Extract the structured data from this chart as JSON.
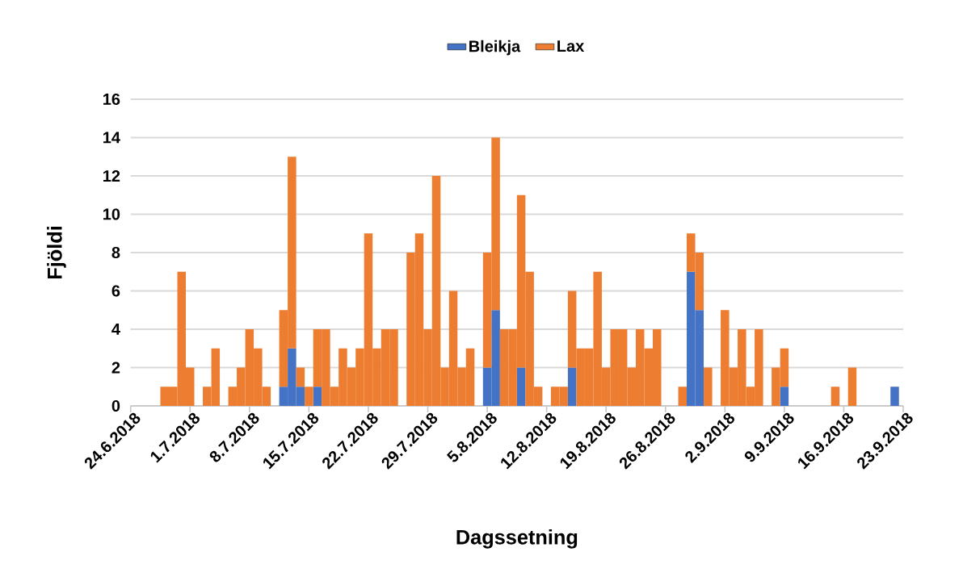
{
  "chart_data": {
    "type": "bar",
    "stacked": true,
    "xlabel": "Dagssetning",
    "ylabel": "Fjöldi",
    "legend": "top",
    "grid": "y",
    "xlim": [
      "2018-06-24",
      "2018-09-23"
    ],
    "xticks": [
      {
        "value": "2018-06-24",
        "label": "24.6.2018"
      },
      {
        "value": "2018-07-01",
        "label": "1.7.2018"
      },
      {
        "value": "2018-07-08",
        "label": "8.7.2018"
      },
      {
        "value": "2018-07-15",
        "label": "15.7.2018"
      },
      {
        "value": "2018-07-22",
        "label": "22.7.2018"
      },
      {
        "value": "2018-07-29",
        "label": "29.7.2018"
      },
      {
        "value": "2018-08-05",
        "label": "5.8.2018"
      },
      {
        "value": "2018-08-12",
        "label": "12.8.2018"
      },
      {
        "value": "2018-08-19",
        "label": "19.8.2018"
      },
      {
        "value": "2018-08-26",
        "label": "26.8.2018"
      },
      {
        "value": "2018-09-02",
        "label": "2.9.2018"
      },
      {
        "value": "2018-09-09",
        "label": "9.9.2018"
      },
      {
        "value": "2018-09-16",
        "label": "16.9.2018"
      },
      {
        "value": "2018-09-23",
        "label": "23.9.2018"
      }
    ],
    "ylim": [
      0,
      16
    ],
    "yticks": [
      0,
      2,
      4,
      6,
      8,
      10,
      12,
      14,
      16
    ],
    "x": [
      "2018-06-28",
      "2018-06-29",
      "2018-06-30",
      "2018-07-01",
      "2018-07-03",
      "2018-07-04",
      "2018-07-06",
      "2018-07-07",
      "2018-07-08",
      "2018-07-09",
      "2018-07-10",
      "2018-07-12",
      "2018-07-13",
      "2018-07-14",
      "2018-07-15",
      "2018-07-16",
      "2018-07-17",
      "2018-07-18",
      "2018-07-19",
      "2018-07-20",
      "2018-07-21",
      "2018-07-22",
      "2018-07-23",
      "2018-07-24",
      "2018-07-25",
      "2018-07-27",
      "2018-07-28",
      "2018-07-29",
      "2018-07-30",
      "2018-07-31",
      "2018-08-01",
      "2018-08-02",
      "2018-08-03",
      "2018-08-05",
      "2018-08-06",
      "2018-08-07",
      "2018-08-08",
      "2018-08-09",
      "2018-08-10",
      "2018-08-11",
      "2018-08-13",
      "2018-08-14",
      "2018-08-15",
      "2018-08-16",
      "2018-08-17",
      "2018-08-18",
      "2018-08-19",
      "2018-08-20",
      "2018-08-21",
      "2018-08-22",
      "2018-08-23",
      "2018-08-24",
      "2018-08-25",
      "2018-08-28",
      "2018-08-29",
      "2018-08-30",
      "2018-08-31",
      "2018-09-02",
      "2018-09-03",
      "2018-09-04",
      "2018-09-05",
      "2018-09-06",
      "2018-09-08",
      "2018-09-09",
      "2018-09-15",
      "2018-09-17",
      "2018-09-22"
    ],
    "series": [
      {
        "name": "Bleikja",
        "color": "#4472c4",
        "values": [
          null,
          null,
          null,
          null,
          null,
          null,
          null,
          null,
          null,
          null,
          null,
          1,
          3,
          1,
          null,
          1,
          null,
          null,
          null,
          null,
          null,
          null,
          null,
          null,
          null,
          null,
          null,
          null,
          null,
          null,
          null,
          null,
          null,
          2,
          5,
          null,
          null,
          2,
          null,
          null,
          null,
          null,
          2,
          null,
          null,
          null,
          null,
          null,
          null,
          null,
          null,
          null,
          null,
          null,
          7,
          5,
          null,
          null,
          null,
          null,
          null,
          null,
          null,
          1,
          null,
          null,
          1
        ]
      },
      {
        "name": "Lax",
        "color": "#ed7d31",
        "values": [
          1,
          1,
          7,
          2,
          1,
          3,
          1,
          2,
          4,
          3,
          1,
          4,
          10,
          1,
          1,
          3,
          4,
          1,
          3,
          2,
          3,
          9,
          3,
          4,
          4,
          8,
          9,
          4,
          12,
          2,
          6,
          2,
          3,
          6,
          9,
          4,
          4,
          9,
          7,
          1,
          1,
          1,
          4,
          3,
          3,
          7,
          2,
          4,
          4,
          2,
          4,
          3,
          4,
          1,
          2,
          3,
          2,
          5,
          2,
          4,
          1,
          4,
          2,
          2,
          1,
          2,
          null
        ]
      }
    ]
  }
}
